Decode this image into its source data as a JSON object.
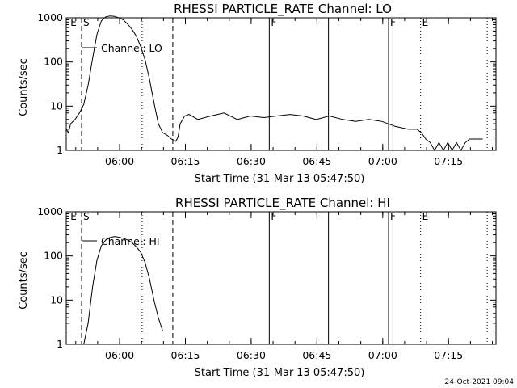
{
  "footer": {
    "timestamp": "24-Oct-2021 09:04"
  },
  "chart_data": [
    {
      "type": "line",
      "title": "RHESSI PARTICLE_RATE Channel: LO",
      "xlabel": "Start Time (31-Mar-13 05:47:50)",
      "ylabel": "Counts/sec",
      "yscale": "log",
      "ylim": [
        1,
        1000
      ],
      "xlim_minutes": [
        0,
        98
      ],
      "xticks": [
        {
          "t": 12.17,
          "label": "06:00"
        },
        {
          "t": 27.17,
          "label": "06:15"
        },
        {
          "t": 42.17,
          "label": "06:30"
        },
        {
          "t": 57.17,
          "label": "06:45"
        },
        {
          "t": 72.17,
          "label": "07:00"
        },
        {
          "t": 87.17,
          "label": "07:15"
        }
      ],
      "yticks": [
        {
          "v": 1,
          "label": "1"
        },
        {
          "v": 10,
          "label": "10"
        },
        {
          "v": 100,
          "label": "100"
        },
        {
          "v": 1000,
          "label": "1000"
        }
      ],
      "legend": "Channel: LO",
      "markers": [
        {
          "label": "E",
          "t": 0.6,
          "style": "text"
        },
        {
          "label": "S",
          "t": 3.5,
          "style": "dashed"
        },
        {
          "t": 17.3,
          "style": "dotted"
        },
        {
          "t": 24.3,
          "style": "dashed"
        },
        {
          "label": "F",
          "t": 46.3,
          "style": "solid"
        },
        {
          "t": 59.8,
          "style": "solid"
        },
        {
          "label": "F",
          "t": 73.5,
          "style": "solid"
        },
        {
          "t": 74.5,
          "style": "solid"
        },
        {
          "label": "E",
          "t": 80.8,
          "style": "dotted"
        },
        {
          "t": 96.0,
          "style": "dotted"
        }
      ],
      "series": [
        {
          "x": [
            0,
            0.5,
            1,
            2,
            3,
            4,
            5,
            6,
            7,
            8,
            9,
            10,
            11,
            12,
            13,
            14,
            15,
            16,
            17,
            18,
            19,
            20,
            21,
            22,
            23,
            24,
            25,
            25.5,
            26,
            27,
            28,
            30,
            33,
            36,
            39,
            42,
            45,
            48,
            51,
            54,
            57,
            60,
            63,
            66,
            69,
            72,
            75,
            78,
            80,
            81,
            82,
            83,
            84,
            85,
            86,
            87,
            88,
            89,
            90,
            91,
            92,
            93,
            94,
            95
          ],
          "y": [
            3,
            2.5,
            4,
            5,
            7,
            11,
            30,
            120,
            420,
            850,
            1050,
            1100,
            1080,
            1000,
            900,
            720,
            550,
            380,
            220,
            110,
            40,
            12,
            4,
            2.5,
            2.2,
            1.8,
            1.6,
            2,
            4,
            6,
            6.5,
            5,
            6,
            7,
            5,
            6,
            5.5,
            6,
            6.5,
            6,
            5,
            6,
            5,
            4.5,
            5,
            4.5,
            3.5,
            3,
            3,
            2.5,
            1.8,
            1.5,
            1,
            1.5,
            1,
            1.5,
            1,
            1.5,
            1,
            1.5,
            1.8,
            1.8,
            1.8,
            1.8
          ]
        }
      ]
    },
    {
      "type": "line",
      "title": "RHESSI PARTICLE_RATE Channel: HI",
      "xlabel": "Start Time (31-Mar-13 05:47:50)",
      "ylabel": "Counts/sec",
      "yscale": "log",
      "ylim": [
        1,
        1000
      ],
      "xlim_minutes": [
        0,
        98
      ],
      "xticks": [
        {
          "t": 12.17,
          "label": "06:00"
        },
        {
          "t": 27.17,
          "label": "06:15"
        },
        {
          "t": 42.17,
          "label": "06:30"
        },
        {
          "t": 57.17,
          "label": "06:45"
        },
        {
          "t": 72.17,
          "label": "07:00"
        },
        {
          "t": 87.17,
          "label": "07:15"
        }
      ],
      "yticks": [
        {
          "v": 1,
          "label": "1"
        },
        {
          "v": 10,
          "label": "10"
        },
        {
          "v": 100,
          "label": "100"
        },
        {
          "v": 1000,
          "label": "1000"
        }
      ],
      "legend": "Channel: HI",
      "markers": [
        {
          "label": "E",
          "t": 0.6,
          "style": "text"
        },
        {
          "label": "S",
          "t": 3.5,
          "style": "dashed"
        },
        {
          "t": 17.3,
          "style": "dotted"
        },
        {
          "t": 24.3,
          "style": "dashed"
        },
        {
          "label": "F",
          "t": 46.3,
          "style": "solid"
        },
        {
          "t": 59.8,
          "style": "solid"
        },
        {
          "label": "F",
          "t": 73.5,
          "style": "solid"
        },
        {
          "t": 74.5,
          "style": "solid"
        },
        {
          "label": "E",
          "t": 80.8,
          "style": "dotted"
        },
        {
          "t": 96.0,
          "style": "dotted"
        }
      ],
      "series": [
        {
          "x": [
            4,
            5,
            6,
            7,
            8,
            9,
            10,
            11,
            12,
            13,
            14,
            15,
            16,
            17,
            18,
            19,
            20,
            21,
            22
          ],
          "y": [
            1,
            3,
            20,
            80,
            170,
            230,
            260,
            275,
            265,
            250,
            230,
            200,
            160,
            120,
            70,
            30,
            10,
            4,
            2
          ]
        }
      ]
    }
  ]
}
